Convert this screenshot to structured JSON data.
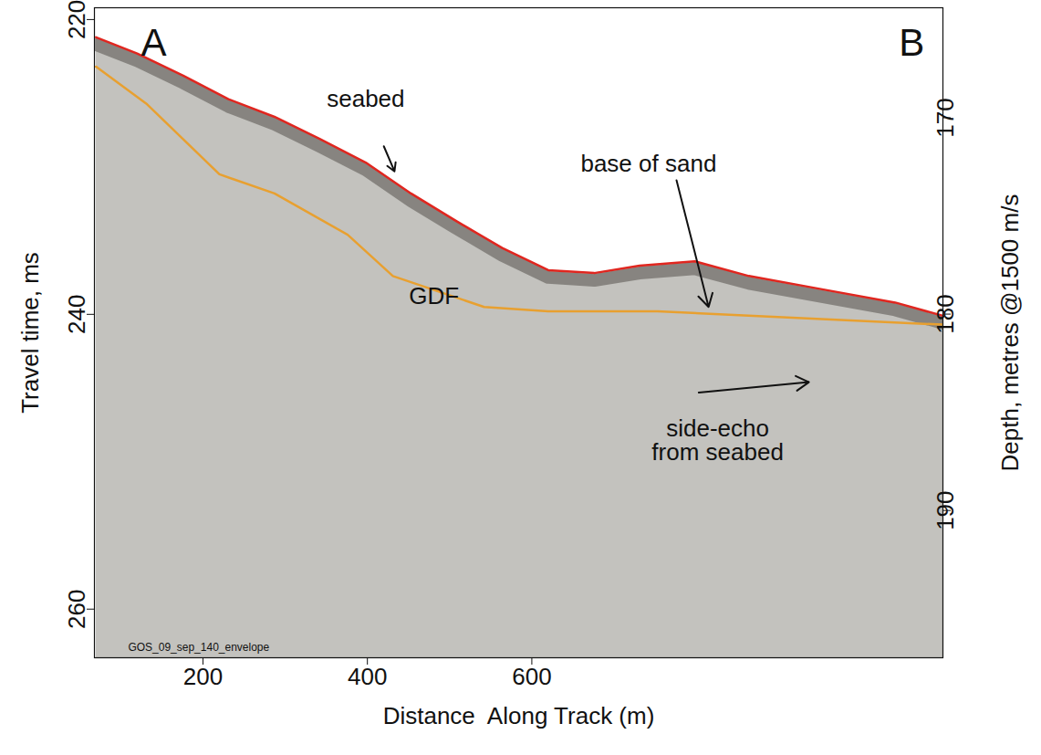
{
  "chart_data": {
    "type": "line",
    "x_label": "Distance  Along Track (m)",
    "y_label": "Travel time, ms",
    "y2_label": "Depth, metres @1500 m/s",
    "xlim": [
      68,
      1100
    ],
    "xticks": [
      200,
      400,
      600
    ],
    "ylim": [
      219.2,
      263.3
    ],
    "yticks": [
      220,
      240,
      260
    ],
    "y2lim": [
      164.4,
      197.5
    ],
    "y2ticks": [
      170,
      180,
      190
    ],
    "series": [
      {
        "name": "seabed",
        "color": "#e0261f",
        "x": [
          70,
          120,
          176,
          231,
          287,
          342,
          398,
          453,
          509,
          564,
          620,
          676,
          731,
          798,
          864,
          953,
          1042,
          1100
        ],
        "values": [
          221.2,
          222.3,
          223.8,
          225.4,
          226.6,
          228.1,
          229.7,
          231.8,
          233.7,
          235.5,
          237.0,
          237.2,
          236.7,
          236.4,
          237.4,
          238.3,
          239.2,
          240.1
        ]
      },
      {
        "name": "base of sand",
        "color": "#e8a030",
        "x": [
          70,
          131,
          220,
          287,
          376,
          431,
          542,
          620,
          753,
          1100
        ],
        "values": [
          223.2,
          225.7,
          230.5,
          231.8,
          234.6,
          237.4,
          239.5,
          239.8,
          239.8,
          240.7
        ]
      }
    ],
    "annotations": [
      {
        "text": "A",
        "x": 140,
        "y": 221.6
      },
      {
        "text": "B",
        "x": 1062,
        "y": 221.6
      },
      {
        "text": "seabed",
        "x": 398,
        "y": 225.4,
        "arrow": {
          "x1": 420,
          "y1": 228.6,
          "x2": 433,
          "y2": 230.3
        }
      },
      {
        "text": "base of sand",
        "x": 742,
        "y": 229.8,
        "arrow": {
          "x1": 776,
          "y1": 230.9,
          "x2": 815,
          "y2": 239.5
        }
      },
      {
        "text": "GDF",
        "x": 481,
        "y": 238.8
      },
      {
        "text": "side-echo from seabed",
        "x": 826,
        "y": 248.6,
        "arrow": {
          "x1": 803,
          "y1": 245.3,
          "x2": 937,
          "y2": 244.6
        }
      },
      {
        "text": "GOS_09_sep_140_envelope",
        "x": 231,
        "y": 262.6
      }
    ]
  }
}
